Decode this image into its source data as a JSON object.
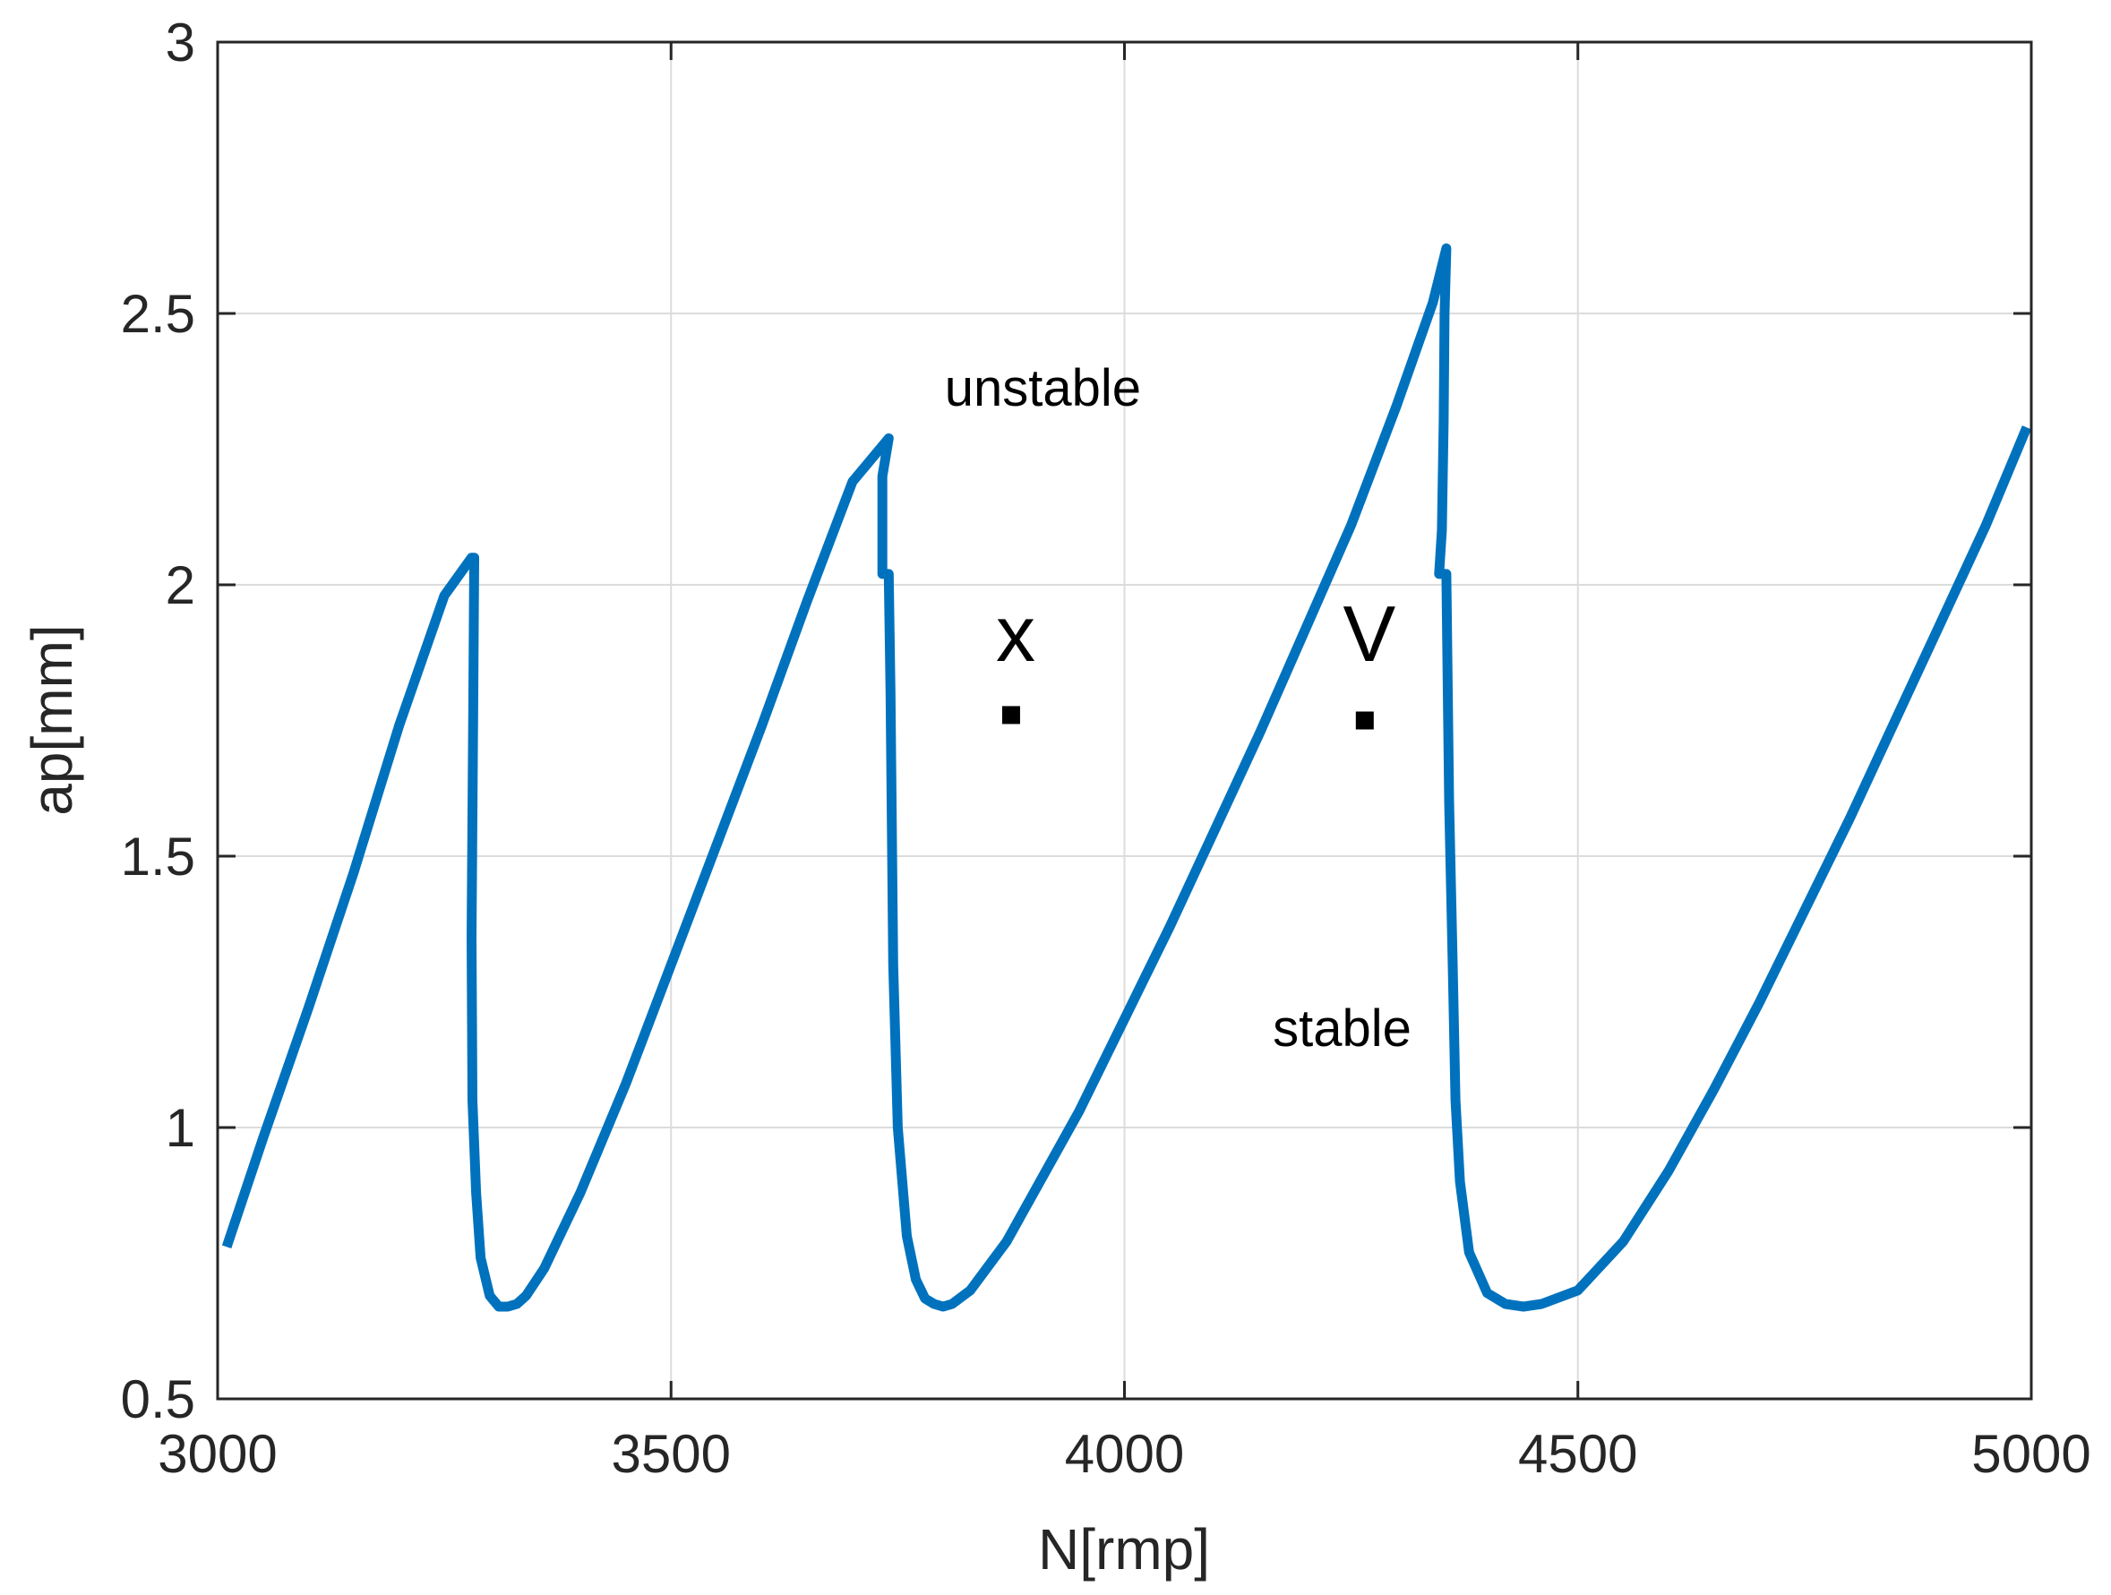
{
  "chart_data": {
    "type": "line",
    "title": "",
    "xlabel": "N[rmp]",
    "ylabel": "ap[mm]",
    "xlim": [
      3000,
      5000
    ],
    "ylim": [
      0.5,
      3
    ],
    "xticks": [
      3000,
      3500,
      4000,
      4500,
      5000
    ],
    "xtick_labels": [
      "3000",
      "3500",
      "4000",
      "4500",
      "5000"
    ],
    "yticks": [
      0.5,
      1,
      1.5,
      2,
      2.5,
      3
    ],
    "ytick_labels": [
      "0.5",
      "1",
      "1.5",
      "2",
      "2.5",
      "3"
    ],
    "grid": true,
    "legend": "none",
    "series": [
      {
        "color": "#0072BD",
        "x": [
          3010,
          3050,
          3100,
          3150,
          3200,
          3250,
          3280,
          3283,
          3282,
          3280,
          3281,
          3285,
          3290,
          3300,
          3310,
          3320,
          3330,
          3340,
          3360,
          3400,
          3450,
          3500,
          3550,
          3600,
          3650,
          3700,
          3740,
          3733,
          3733,
          3740,
          3742,
          3745,
          3750,
          3760,
          3770,
          3780,
          3790,
          3800,
          3810,
          3830,
          3870,
          3900,
          3950,
          4000,
          4050,
          4100,
          4150,
          4200,
          4250,
          4300,
          4340,
          4355,
          4353,
          4352,
          4350,
          4347,
          4347,
          4355,
          4358,
          4362,
          4365,
          4370,
          4380,
          4400,
          4420,
          4440,
          4460,
          4500,
          4550,
          4600,
          4650,
          4700,
          4750,
          4800,
          4850,
          4900,
          4950,
          4995
        ],
        "y": [
          0.78,
          0.98,
          1.22,
          1.47,
          1.74,
          1.98,
          2.05,
          2.05,
          1.8,
          1.35,
          1.05,
          0.88,
          0.76,
          0.69,
          0.67,
          0.67,
          0.675,
          0.69,
          0.74,
          0.88,
          1.08,
          1.3,
          1.52,
          1.74,
          1.97,
          2.19,
          2.27,
          2.2,
          2.02,
          2.02,
          1.8,
          1.3,
          1.0,
          0.8,
          0.72,
          0.685,
          0.675,
          0.67,
          0.675,
          0.7,
          0.79,
          0.88,
          1.03,
          1.2,
          1.37,
          1.55,
          1.73,
          1.92,
          2.11,
          2.33,
          2.52,
          2.62,
          2.5,
          2.3,
          2.1,
          2.02,
          2.02,
          2.02,
          1.6,
          1.3,
          1.05,
          0.9,
          0.77,
          0.695,
          0.675,
          0.67,
          0.675,
          0.7,
          0.79,
          0.92,
          1.07,
          1.23,
          1.4,
          1.57,
          1.75,
          1.93,
          2.11,
          2.29
        ]
      }
    ],
    "annotations": [
      {
        "text": "unstable",
        "x": 3910,
        "y": 2.33,
        "size": "small"
      },
      {
        "text": "stable",
        "x": 4240,
        "y": 1.15,
        "size": "small"
      },
      {
        "text": "x",
        "x": 3880,
        "y": 1.86,
        "size": "large"
      },
      {
        "text": "V",
        "x": 4270,
        "y": 1.86,
        "size": "large"
      }
    ],
    "points": [
      {
        "x": 3875,
        "y": 1.76
      },
      {
        "x": 4265,
        "y": 1.75
      }
    ]
  }
}
